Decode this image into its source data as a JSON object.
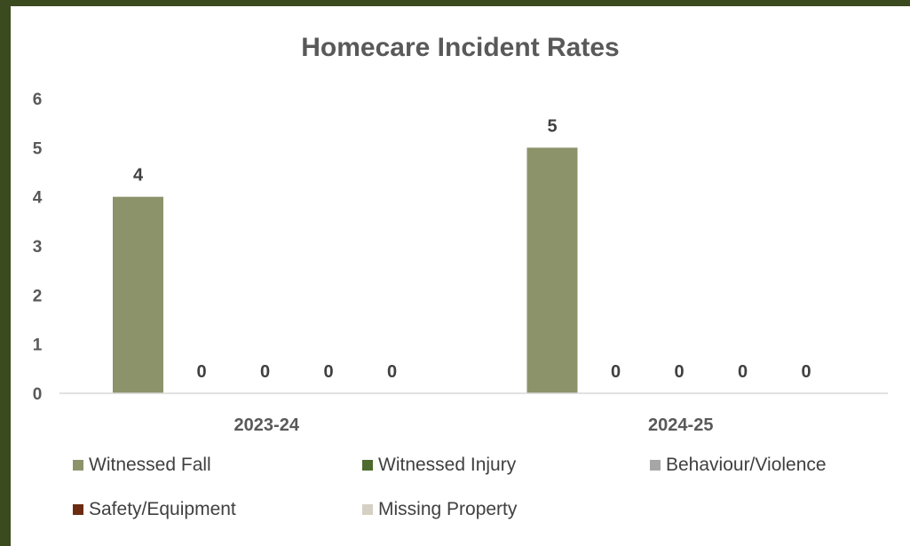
{
  "chart_data": {
    "type": "bar",
    "title": "Homecare Incident Rates",
    "categories": [
      "2023-24",
      "2024-25"
    ],
    "series": [
      {
        "name": "Witnessed Fall",
        "values": [
          4,
          5
        ],
        "color": "#8c936a"
      },
      {
        "name": "Witnessed Injury",
        "values": [
          0,
          0
        ],
        "color": "#4e6b2f"
      },
      {
        "name": "Behaviour/Violence",
        "values": [
          0,
          0
        ],
        "color": "#a6a6a6"
      },
      {
        "name": "Safety/Equipment",
        "values": [
          0,
          0
        ],
        "color": "#6b2c12"
      },
      {
        "name": "Missing Property",
        "values": [
          0,
          0
        ],
        "color": "#d6d0c4"
      }
    ],
    "ylim": [
      0,
      6
    ],
    "yticks": [
      "0",
      "1",
      "2",
      "3",
      "4",
      "5",
      "6"
    ],
    "grid": false,
    "data_labels": true,
    "legend_position": "bottom"
  }
}
